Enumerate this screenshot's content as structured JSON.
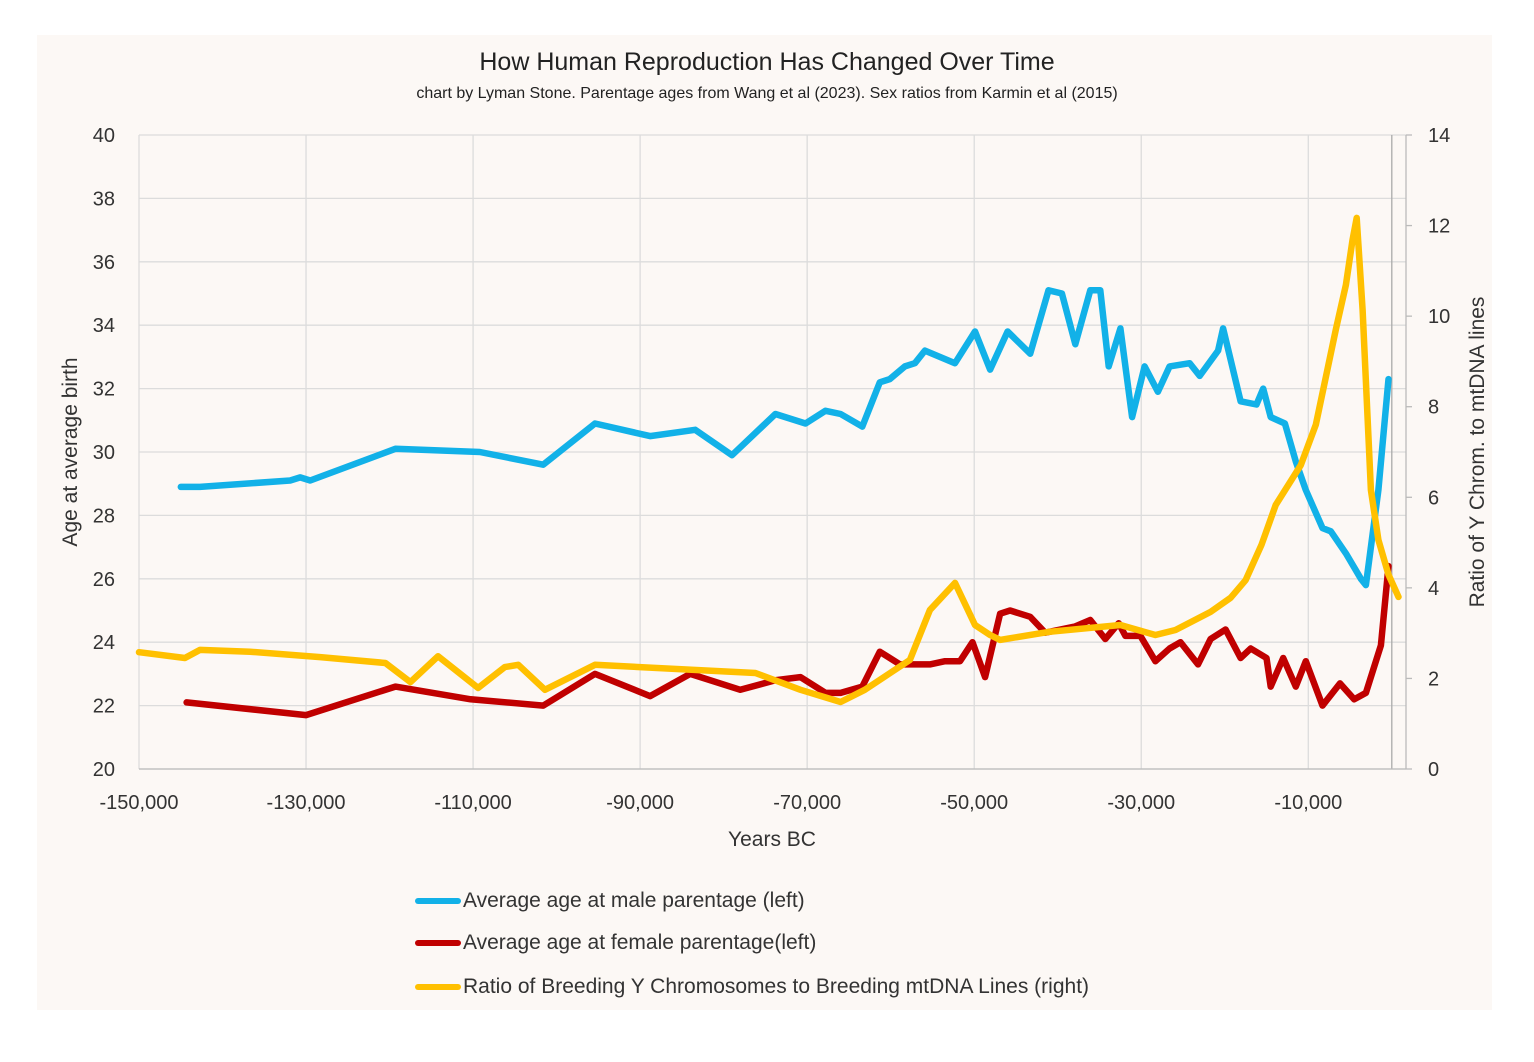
{
  "chart_data": {
    "type": "line",
    "title": "How Human Reproduction Has Changed Over Time",
    "subtitle": "chart by Lyman Stone. Parentage ages from Wang et al (2023). Sex ratios from Karmin et al (2015)",
    "xlabel": "Years BC",
    "ylabel": "Age at average birth",
    "y2label": "Ratio of Y Chrom. to mtDNA lines",
    "xlim": [
      -150000,
      1700
    ],
    "ylim": [
      20,
      40
    ],
    "y2lim": [
      0,
      14
    ],
    "xticks": [
      -150000,
      -130000,
      -110000,
      -90000,
      -70000,
      -50000,
      -30000,
      -10000
    ],
    "xtick_labels": [
      "-150,000",
      "-130,000",
      "-110,000",
      "-90,000",
      "-70,000",
      "-50,000",
      "-30,000",
      "-10,000"
    ],
    "yticks": [
      20,
      22,
      24,
      26,
      28,
      30,
      32,
      34,
      36,
      38,
      40
    ],
    "y2ticks": [
      0,
      2,
      4,
      6,
      8,
      10,
      12,
      14
    ],
    "grid": true,
    "legend_position": "bottom",
    "series": [
      {
        "name": "Average age at male parentage (left)",
        "axis": "left",
        "color": "#12b1e8",
        "points": [
          [
            -145000,
            28.9
          ],
          [
            -142700,
            28.9
          ],
          [
            -131900,
            29.1
          ],
          [
            -130700,
            29.2
          ],
          [
            -129500,
            29.1
          ],
          [
            -119300,
            30.1
          ],
          [
            -109200,
            30.0
          ],
          [
            -101600,
            29.6
          ],
          [
            -95400,
            30.9
          ],
          [
            -88800,
            30.5
          ],
          [
            -83400,
            30.7
          ],
          [
            -79000,
            29.9
          ],
          [
            -73800,
            31.2
          ],
          [
            -70200,
            30.9
          ],
          [
            -67800,
            31.3
          ],
          [
            -66000,
            31.2
          ],
          [
            -63400,
            30.8
          ],
          [
            -61300,
            32.2
          ],
          [
            -60100,
            32.3
          ],
          [
            -58300,
            32.7
          ],
          [
            -57100,
            32.8
          ],
          [
            -55900,
            33.2
          ],
          [
            -52300,
            32.8
          ],
          [
            -49900,
            33.8
          ],
          [
            -48100,
            32.6
          ],
          [
            -46000,
            33.8
          ],
          [
            -43300,
            33.1
          ],
          [
            -41100,
            35.1
          ],
          [
            -39500,
            35.0
          ],
          [
            -37900,
            33.4
          ],
          [
            -36100,
            35.1
          ],
          [
            -34900,
            35.1
          ],
          [
            -33900,
            32.7
          ],
          [
            -32500,
            33.9
          ],
          [
            -31100,
            31.1
          ],
          [
            -29600,
            32.7
          ],
          [
            -28000,
            31.9
          ],
          [
            -26600,
            32.7
          ],
          [
            -24200,
            32.8
          ],
          [
            -23000,
            32.4
          ],
          [
            -20800,
            33.2
          ],
          [
            -20200,
            33.9
          ],
          [
            -18100,
            31.6
          ],
          [
            -16200,
            31.5
          ],
          [
            -15400,
            32.0
          ],
          [
            -14500,
            31.1
          ],
          [
            -12800,
            30.9
          ],
          [
            -11500,
            29.7
          ],
          [
            -10300,
            28.8
          ],
          [
            -8300,
            27.6
          ],
          [
            -7300,
            27.5
          ],
          [
            -5500,
            26.8
          ],
          [
            -3700,
            26.0
          ],
          [
            -3100,
            25.8
          ],
          [
            -1600,
            28.8
          ],
          [
            -400,
            32.3
          ]
        ]
      },
      {
        "name": "Average age at female parentage(left)",
        "axis": "left",
        "color": "#c00000",
        "points": [
          [
            -144300,
            22.1
          ],
          [
            -130000,
            21.7
          ],
          [
            -119300,
            22.6
          ],
          [
            -110300,
            22.2
          ],
          [
            -101600,
            22.0
          ],
          [
            -95400,
            23.0
          ],
          [
            -88800,
            22.3
          ],
          [
            -84000,
            23.0
          ],
          [
            -78000,
            22.5
          ],
          [
            -73800,
            22.8
          ],
          [
            -70800,
            22.9
          ],
          [
            -67800,
            22.4
          ],
          [
            -66000,
            22.4
          ],
          [
            -63400,
            22.6
          ],
          [
            -61300,
            23.7
          ],
          [
            -58900,
            23.3
          ],
          [
            -57100,
            23.3
          ],
          [
            -55300,
            23.3
          ],
          [
            -53500,
            23.4
          ],
          [
            -51700,
            23.4
          ],
          [
            -50200,
            24.0
          ],
          [
            -48700,
            22.9
          ],
          [
            -46900,
            24.9
          ],
          [
            -45700,
            25.0
          ],
          [
            -43300,
            24.8
          ],
          [
            -41500,
            24.3
          ],
          [
            -37900,
            24.5
          ],
          [
            -36100,
            24.7
          ],
          [
            -34300,
            24.1
          ],
          [
            -32700,
            24.6
          ],
          [
            -31900,
            24.2
          ],
          [
            -30100,
            24.2
          ],
          [
            -28300,
            23.4
          ],
          [
            -26600,
            23.8
          ],
          [
            -25300,
            24.0
          ],
          [
            -23200,
            23.3
          ],
          [
            -21700,
            24.1
          ],
          [
            -19900,
            24.4
          ],
          [
            -18100,
            23.5
          ],
          [
            -16900,
            23.8
          ],
          [
            -15000,
            23.5
          ],
          [
            -14500,
            22.6
          ],
          [
            -13000,
            23.5
          ],
          [
            -11500,
            22.6
          ],
          [
            -10300,
            23.4
          ],
          [
            -8300,
            22.0
          ],
          [
            -6200,
            22.7
          ],
          [
            -4500,
            22.2
          ],
          [
            -3100,
            22.4
          ],
          [
            -1300,
            23.9
          ],
          [
            -400,
            26.4
          ]
        ]
      },
      {
        "name": "Ratio of Breeding Y Chromosomes to Breeding mtDNA Lines (right)",
        "axis": "right",
        "color": "#ffc000",
        "points": [
          [
            -150000,
            2.58
          ],
          [
            -144500,
            2.45
          ],
          [
            -142700,
            2.63
          ],
          [
            -136700,
            2.59
          ],
          [
            -128300,
            2.47
          ],
          [
            -120500,
            2.34
          ],
          [
            -117500,
            1.92
          ],
          [
            -114200,
            2.49
          ],
          [
            -109400,
            1.79
          ],
          [
            -106200,
            2.25
          ],
          [
            -104600,
            2.3
          ],
          [
            -101400,
            1.75
          ],
          [
            -95400,
            2.3
          ],
          [
            -76200,
            2.12
          ],
          [
            -70800,
            1.75
          ],
          [
            -66000,
            1.48
          ],
          [
            -63100,
            1.75
          ],
          [
            -57700,
            2.41
          ],
          [
            -55300,
            3.51
          ],
          [
            -52300,
            4.11
          ],
          [
            -49900,
            3.18
          ],
          [
            -48100,
            2.96
          ],
          [
            -46900,
            2.85
          ],
          [
            -41000,
            3.03
          ],
          [
            -32500,
            3.18
          ],
          [
            -28300,
            2.96
          ],
          [
            -25900,
            3.07
          ],
          [
            -21700,
            3.47
          ],
          [
            -19300,
            3.78
          ],
          [
            -17500,
            4.17
          ],
          [
            -15600,
            4.95
          ],
          [
            -13900,
            5.83
          ],
          [
            -10900,
            6.71
          ],
          [
            -9100,
            7.6
          ],
          [
            -6700,
            9.7
          ],
          [
            -5500,
            10.69
          ],
          [
            -4700,
            11.68
          ],
          [
            -4200,
            12.17
          ],
          [
            -3500,
            10.14
          ],
          [
            -2500,
            6.16
          ],
          [
            -1600,
            5.06
          ],
          [
            -400,
            4.29
          ],
          [
            800,
            3.8
          ]
        ]
      }
    ]
  }
}
